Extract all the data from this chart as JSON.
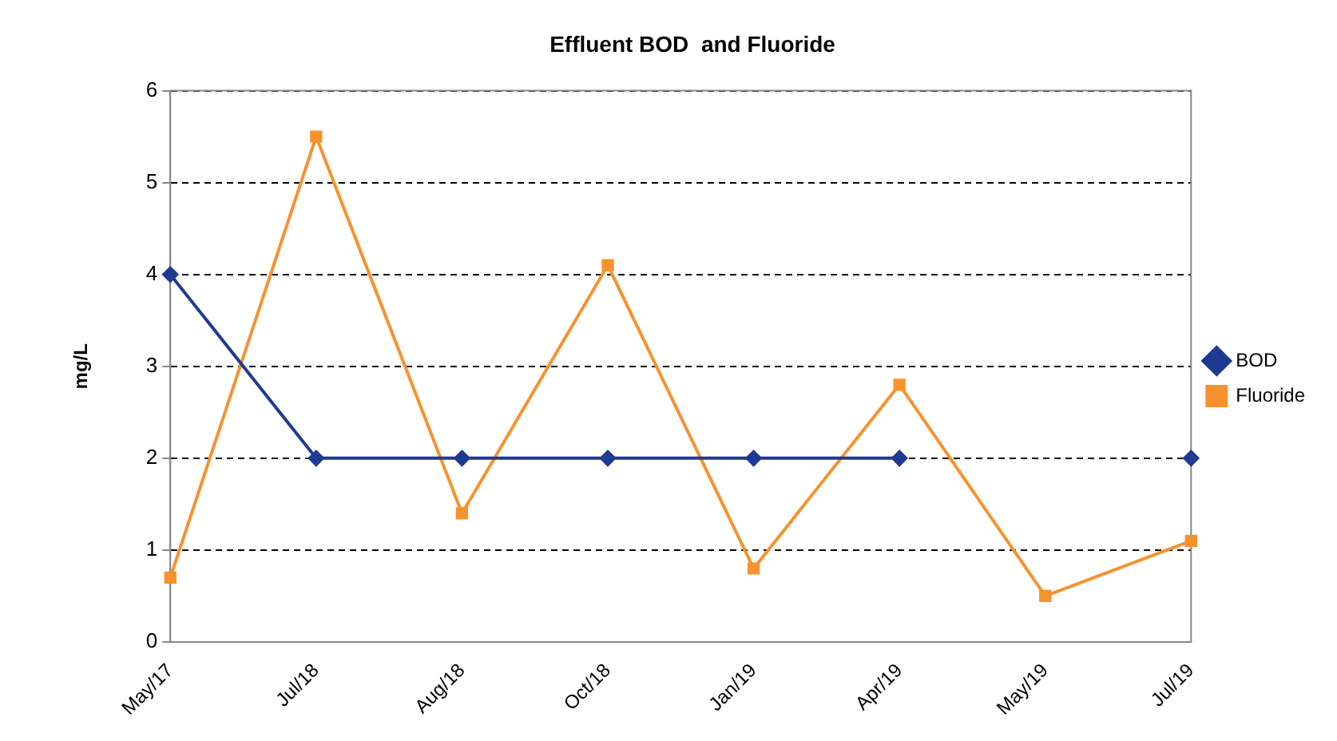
{
  "chart_data": {
    "type": "line",
    "title": "Effluent BOD  and Fluoride",
    "ylabel": "mg/L",
    "categories": [
      "May/17",
      "Jul/18",
      "Aug/18",
      "Oct/18",
      "Jan/19",
      "Apr/19",
      "May/19",
      "Jul/19"
    ],
    "series": [
      {
        "name": "BOD",
        "color": "#1f3a93",
        "marker": "diamond",
        "values": [
          4,
          2,
          2,
          2,
          2,
          2,
          null,
          2
        ]
      },
      {
        "name": "Fluoride",
        "color": "#f7922e",
        "marker": "square",
        "values": [
          0.7,
          5.5,
          1.4,
          4.1,
          0.8,
          2.8,
          0.5,
          1.1
        ]
      }
    ],
    "ylim": [
      0,
      6
    ],
    "yticks": [
      0,
      1,
      2,
      3,
      4,
      5,
      6
    ],
    "grid": "y",
    "legend": "right",
    "line_style": "solid"
  }
}
